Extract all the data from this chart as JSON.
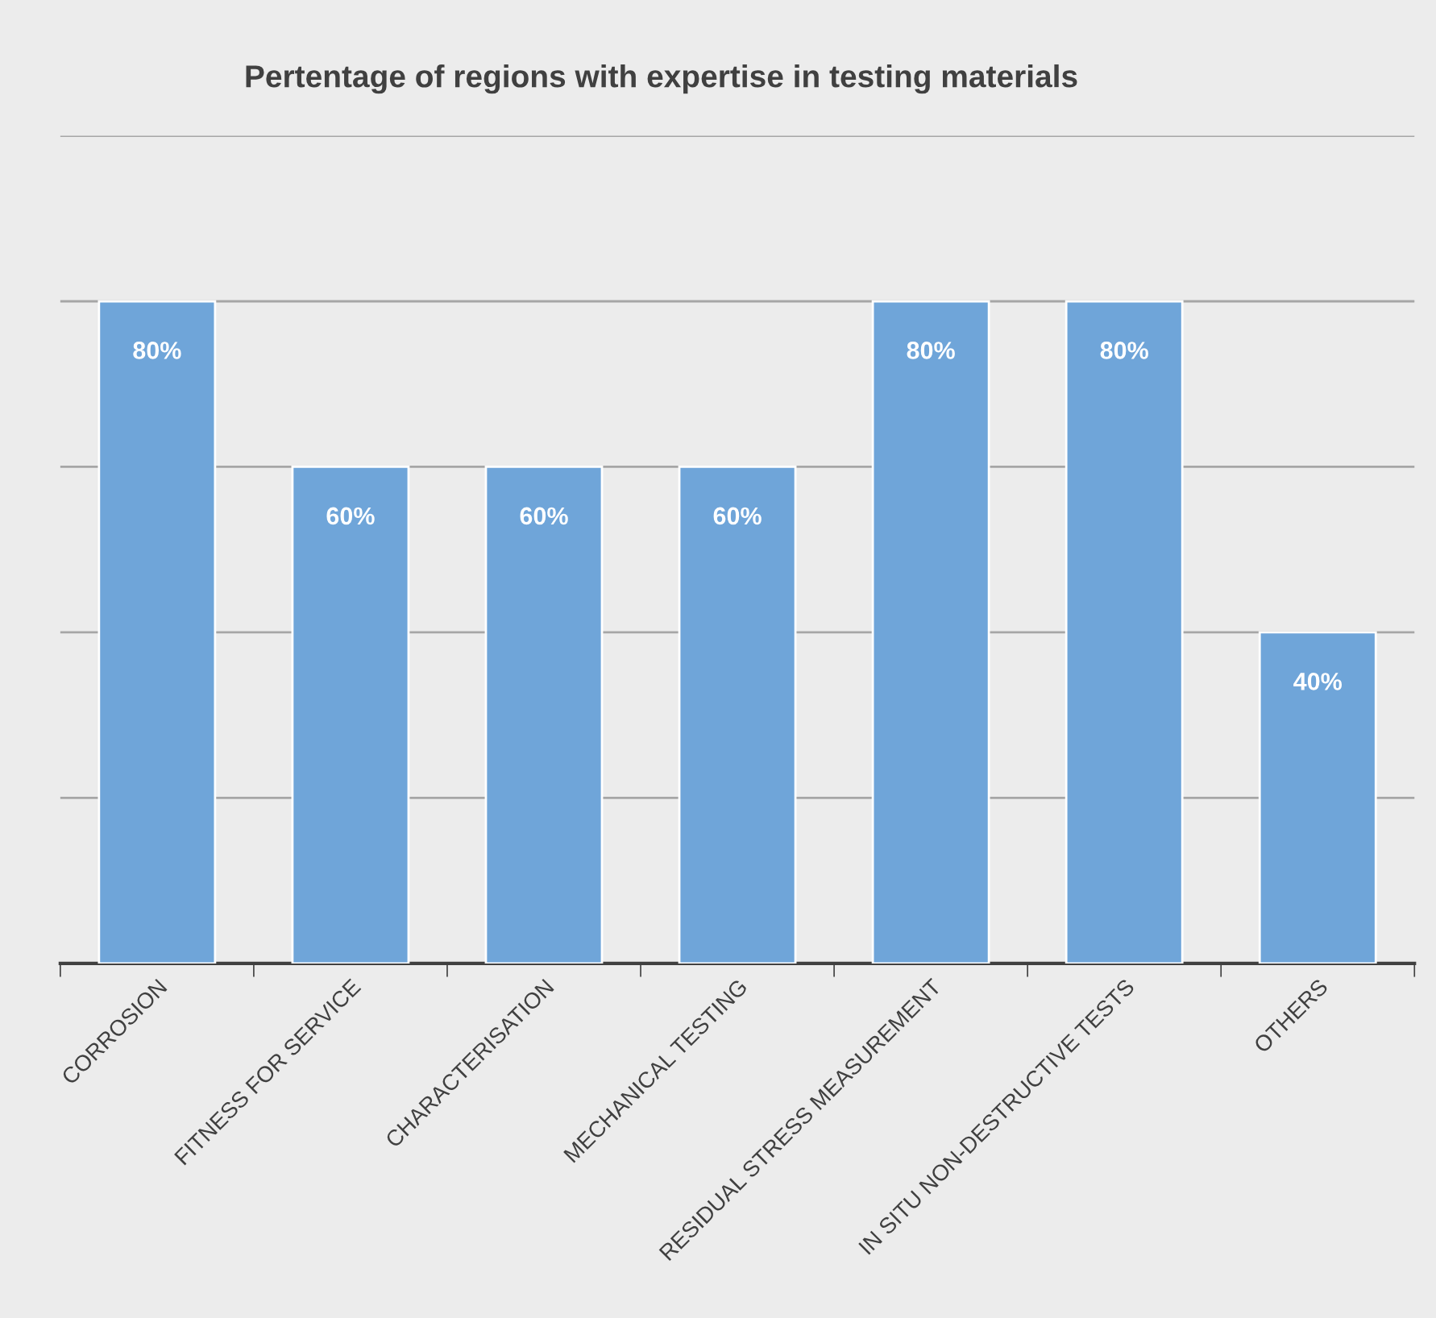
{
  "chart_data": {
    "type": "bar",
    "title": "Pertentage of regions with expertise in testing materials",
    "categories": [
      "CORROSION",
      "FITNESS FOR SERVICE",
      "CHARACTERISATION",
      "MECHANICAL TESTING",
      "RESIDUAL STRESS MEASUREMENT",
      "IN SITU NON-DESTRUCTIVE TESTS",
      "OTHERS"
    ],
    "values": [
      80,
      60,
      60,
      60,
      80,
      80,
      40
    ],
    "value_labels": [
      "80%",
      "60%",
      "60%",
      "60%",
      "80%",
      "80%",
      "40%"
    ],
    "color": "#6fa5d9",
    "ylim": [
      0,
      100
    ],
    "yticks": [
      {
        "value": 0,
        "label": null
      },
      {
        "value": 20,
        "label": null
      },
      {
        "value": 40,
        "label": null
      },
      {
        "value": 60,
        "label": null
      },
      {
        "value": 80,
        "label": null
      },
      {
        "value": 100,
        "label": null
      }
    ],
    "tick_labels": "x",
    "grid": "y",
    "legend": false
  }
}
